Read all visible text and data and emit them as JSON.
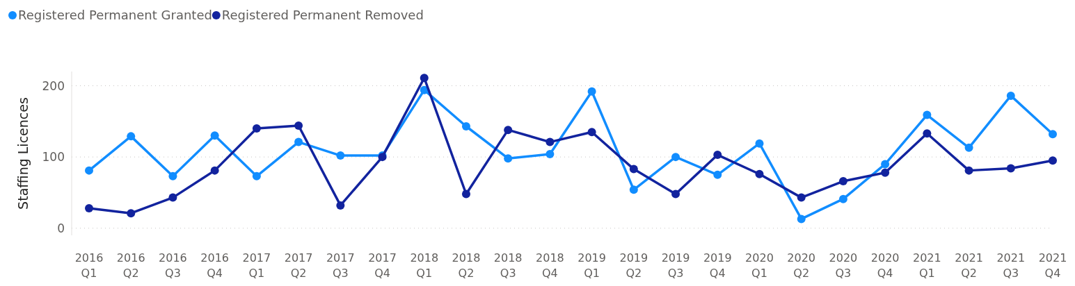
{
  "chart_data": {
    "type": "line",
    "ylabel": "Staffing Licences",
    "categories": [
      "2016 Q1",
      "2016 Q2",
      "2016 Q3",
      "2016 Q4",
      "2017 Q1",
      "2017 Q2",
      "2017 Q3",
      "2017 Q4",
      "2018 Q1",
      "2018 Q2",
      "2018 Q3",
      "2018 Q4",
      "2019 Q1",
      "2019 Q2",
      "2019 Q3",
      "2019 Q4",
      "2020 Q1",
      "2020 Q2",
      "2020 Q3",
      "2020 Q4",
      "2021 Q1",
      "2021 Q2",
      "2021 Q3",
      "2021 Q4"
    ],
    "series": [
      {
        "name": "Registered Permanent Granted",
        "color": "#118dff",
        "values": [
          81,
          129,
          73,
          130,
          73,
          121,
          102,
          102,
          194,
          143,
          98,
          104,
          192,
          54,
          100,
          75,
          119,
          13,
          41,
          90,
          159,
          113,
          186,
          132
        ]
      },
      {
        "name": "Registered Permanent Removed",
        "color": "#12239e",
        "values": [
          28,
          21,
          43,
          81,
          140,
          144,
          32,
          100,
          211,
          48,
          138,
          121,
          135,
          83,
          48,
          103,
          76,
          43,
          66,
          78,
          133,
          81,
          84,
          95
        ]
      }
    ],
    "ylim": [
      -10,
      220
    ],
    "yticks": [
      0,
      100,
      200
    ],
    "grid": "y",
    "legend": "top left",
    "marker": "circle",
    "line_style": "solid"
  }
}
